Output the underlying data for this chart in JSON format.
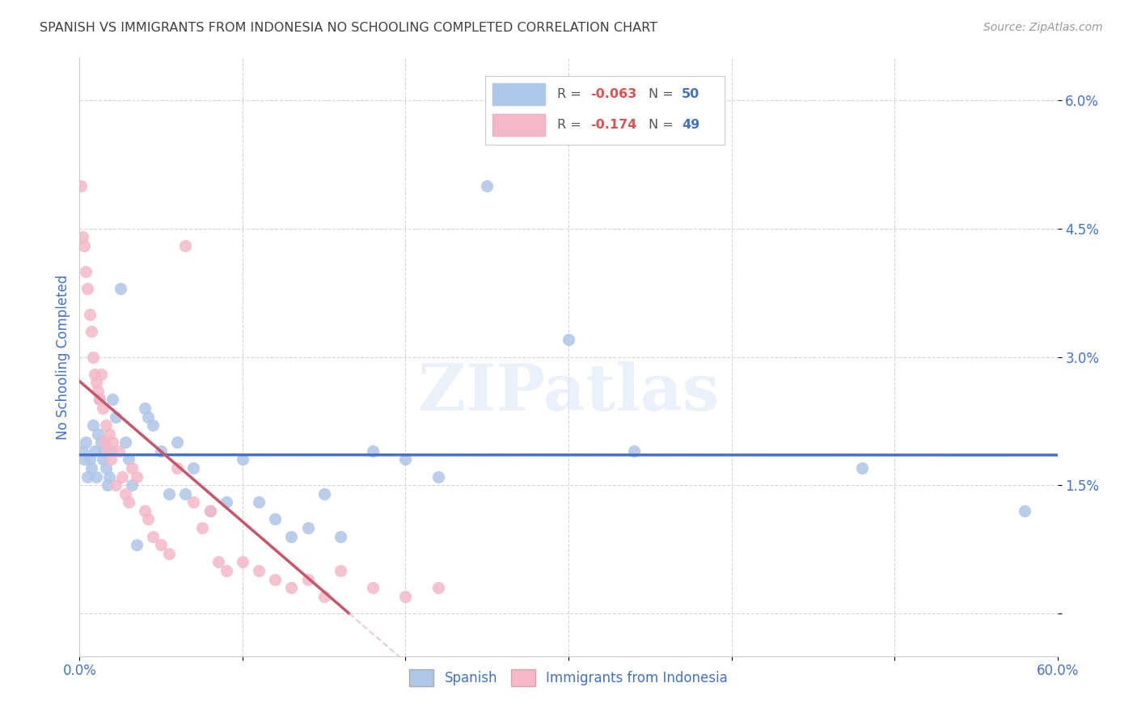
{
  "title": "SPANISH VS IMMIGRANTS FROM INDONESIA NO SCHOOLING COMPLETED CORRELATION CHART",
  "source": "Source: ZipAtlas.com",
  "ylabel": "No Schooling Completed",
  "xlim": [
    0.0,
    0.6
  ],
  "ylim": [
    -0.005,
    0.065
  ],
  "xticks": [
    0.0,
    0.1,
    0.2,
    0.3,
    0.4,
    0.5,
    0.6
  ],
  "yticks": [
    0.0,
    0.015,
    0.03,
    0.045,
    0.06
  ],
  "ytick_labels": [
    "",
    "1.5%",
    "3.0%",
    "4.5%",
    "6.0%"
  ],
  "xtick_labels": [
    "0.0%",
    "",
    "",
    "",
    "",
    "",
    "60.0%"
  ],
  "spanish_color": "#aec6e8",
  "indonesia_color": "#f4b8c8",
  "trendline_spanish_color": "#4472c4",
  "trendline_indonesia_color": "#c9556a",
  "watermark": "ZIPatlas",
  "spanish_points": [
    [
      0.002,
      0.019
    ],
    [
      0.003,
      0.018
    ],
    [
      0.004,
      0.02
    ],
    [
      0.005,
      0.016
    ],
    [
      0.006,
      0.018
    ],
    [
      0.007,
      0.017
    ],
    [
      0.008,
      0.022
    ],
    [
      0.009,
      0.019
    ],
    [
      0.01,
      0.016
    ],
    [
      0.011,
      0.021
    ],
    [
      0.012,
      0.025
    ],
    [
      0.013,
      0.02
    ],
    [
      0.014,
      0.018
    ],
    [
      0.015,
      0.019
    ],
    [
      0.016,
      0.017
    ],
    [
      0.017,
      0.015
    ],
    [
      0.018,
      0.016
    ],
    [
      0.019,
      0.019
    ],
    [
      0.02,
      0.025
    ],
    [
      0.022,
      0.023
    ],
    [
      0.025,
      0.038
    ],
    [
      0.028,
      0.02
    ],
    [
      0.03,
      0.018
    ],
    [
      0.032,
      0.015
    ],
    [
      0.035,
      0.008
    ],
    [
      0.04,
      0.024
    ],
    [
      0.042,
      0.023
    ],
    [
      0.045,
      0.022
    ],
    [
      0.05,
      0.019
    ],
    [
      0.055,
      0.014
    ],
    [
      0.06,
      0.02
    ],
    [
      0.065,
      0.014
    ],
    [
      0.07,
      0.017
    ],
    [
      0.08,
      0.012
    ],
    [
      0.09,
      0.013
    ],
    [
      0.1,
      0.018
    ],
    [
      0.11,
      0.013
    ],
    [
      0.12,
      0.011
    ],
    [
      0.13,
      0.009
    ],
    [
      0.14,
      0.01
    ],
    [
      0.15,
      0.014
    ],
    [
      0.16,
      0.009
    ],
    [
      0.18,
      0.019
    ],
    [
      0.2,
      0.018
    ],
    [
      0.22,
      0.016
    ],
    [
      0.25,
      0.05
    ],
    [
      0.3,
      0.032
    ],
    [
      0.34,
      0.019
    ],
    [
      0.48,
      0.017
    ],
    [
      0.58,
      0.012
    ]
  ],
  "indonesia_points": [
    [
      0.001,
      0.05
    ],
    [
      0.002,
      0.044
    ],
    [
      0.003,
      0.043
    ],
    [
      0.004,
      0.04
    ],
    [
      0.005,
      0.038
    ],
    [
      0.006,
      0.035
    ],
    [
      0.007,
      0.033
    ],
    [
      0.008,
      0.03
    ],
    [
      0.009,
      0.028
    ],
    [
      0.01,
      0.027
    ],
    [
      0.011,
      0.026
    ],
    [
      0.012,
      0.025
    ],
    [
      0.013,
      0.028
    ],
    [
      0.014,
      0.024
    ],
    [
      0.015,
      0.02
    ],
    [
      0.016,
      0.022
    ],
    [
      0.017,
      0.019
    ],
    [
      0.018,
      0.021
    ],
    [
      0.019,
      0.018
    ],
    [
      0.02,
      0.02
    ],
    [
      0.022,
      0.015
    ],
    [
      0.024,
      0.019
    ],
    [
      0.026,
      0.016
    ],
    [
      0.028,
      0.014
    ],
    [
      0.03,
      0.013
    ],
    [
      0.032,
      0.017
    ],
    [
      0.035,
      0.016
    ],
    [
      0.04,
      0.012
    ],
    [
      0.042,
      0.011
    ],
    [
      0.045,
      0.009
    ],
    [
      0.05,
      0.008
    ],
    [
      0.055,
      0.007
    ],
    [
      0.06,
      0.017
    ],
    [
      0.065,
      0.043
    ],
    [
      0.07,
      0.013
    ],
    [
      0.075,
      0.01
    ],
    [
      0.08,
      0.012
    ],
    [
      0.085,
      0.006
    ],
    [
      0.09,
      0.005
    ],
    [
      0.1,
      0.006
    ],
    [
      0.11,
      0.005
    ],
    [
      0.12,
      0.004
    ],
    [
      0.13,
      0.003
    ],
    [
      0.14,
      0.004
    ],
    [
      0.15,
      0.002
    ],
    [
      0.16,
      0.005
    ],
    [
      0.18,
      0.003
    ],
    [
      0.2,
      0.002
    ],
    [
      0.22,
      0.003
    ]
  ],
  "background_color": "#ffffff",
  "grid_color": "#cccccc",
  "title_color": "#404040",
  "axis_label_color": "#4472c4",
  "tick_label_color": "#4472c4"
}
